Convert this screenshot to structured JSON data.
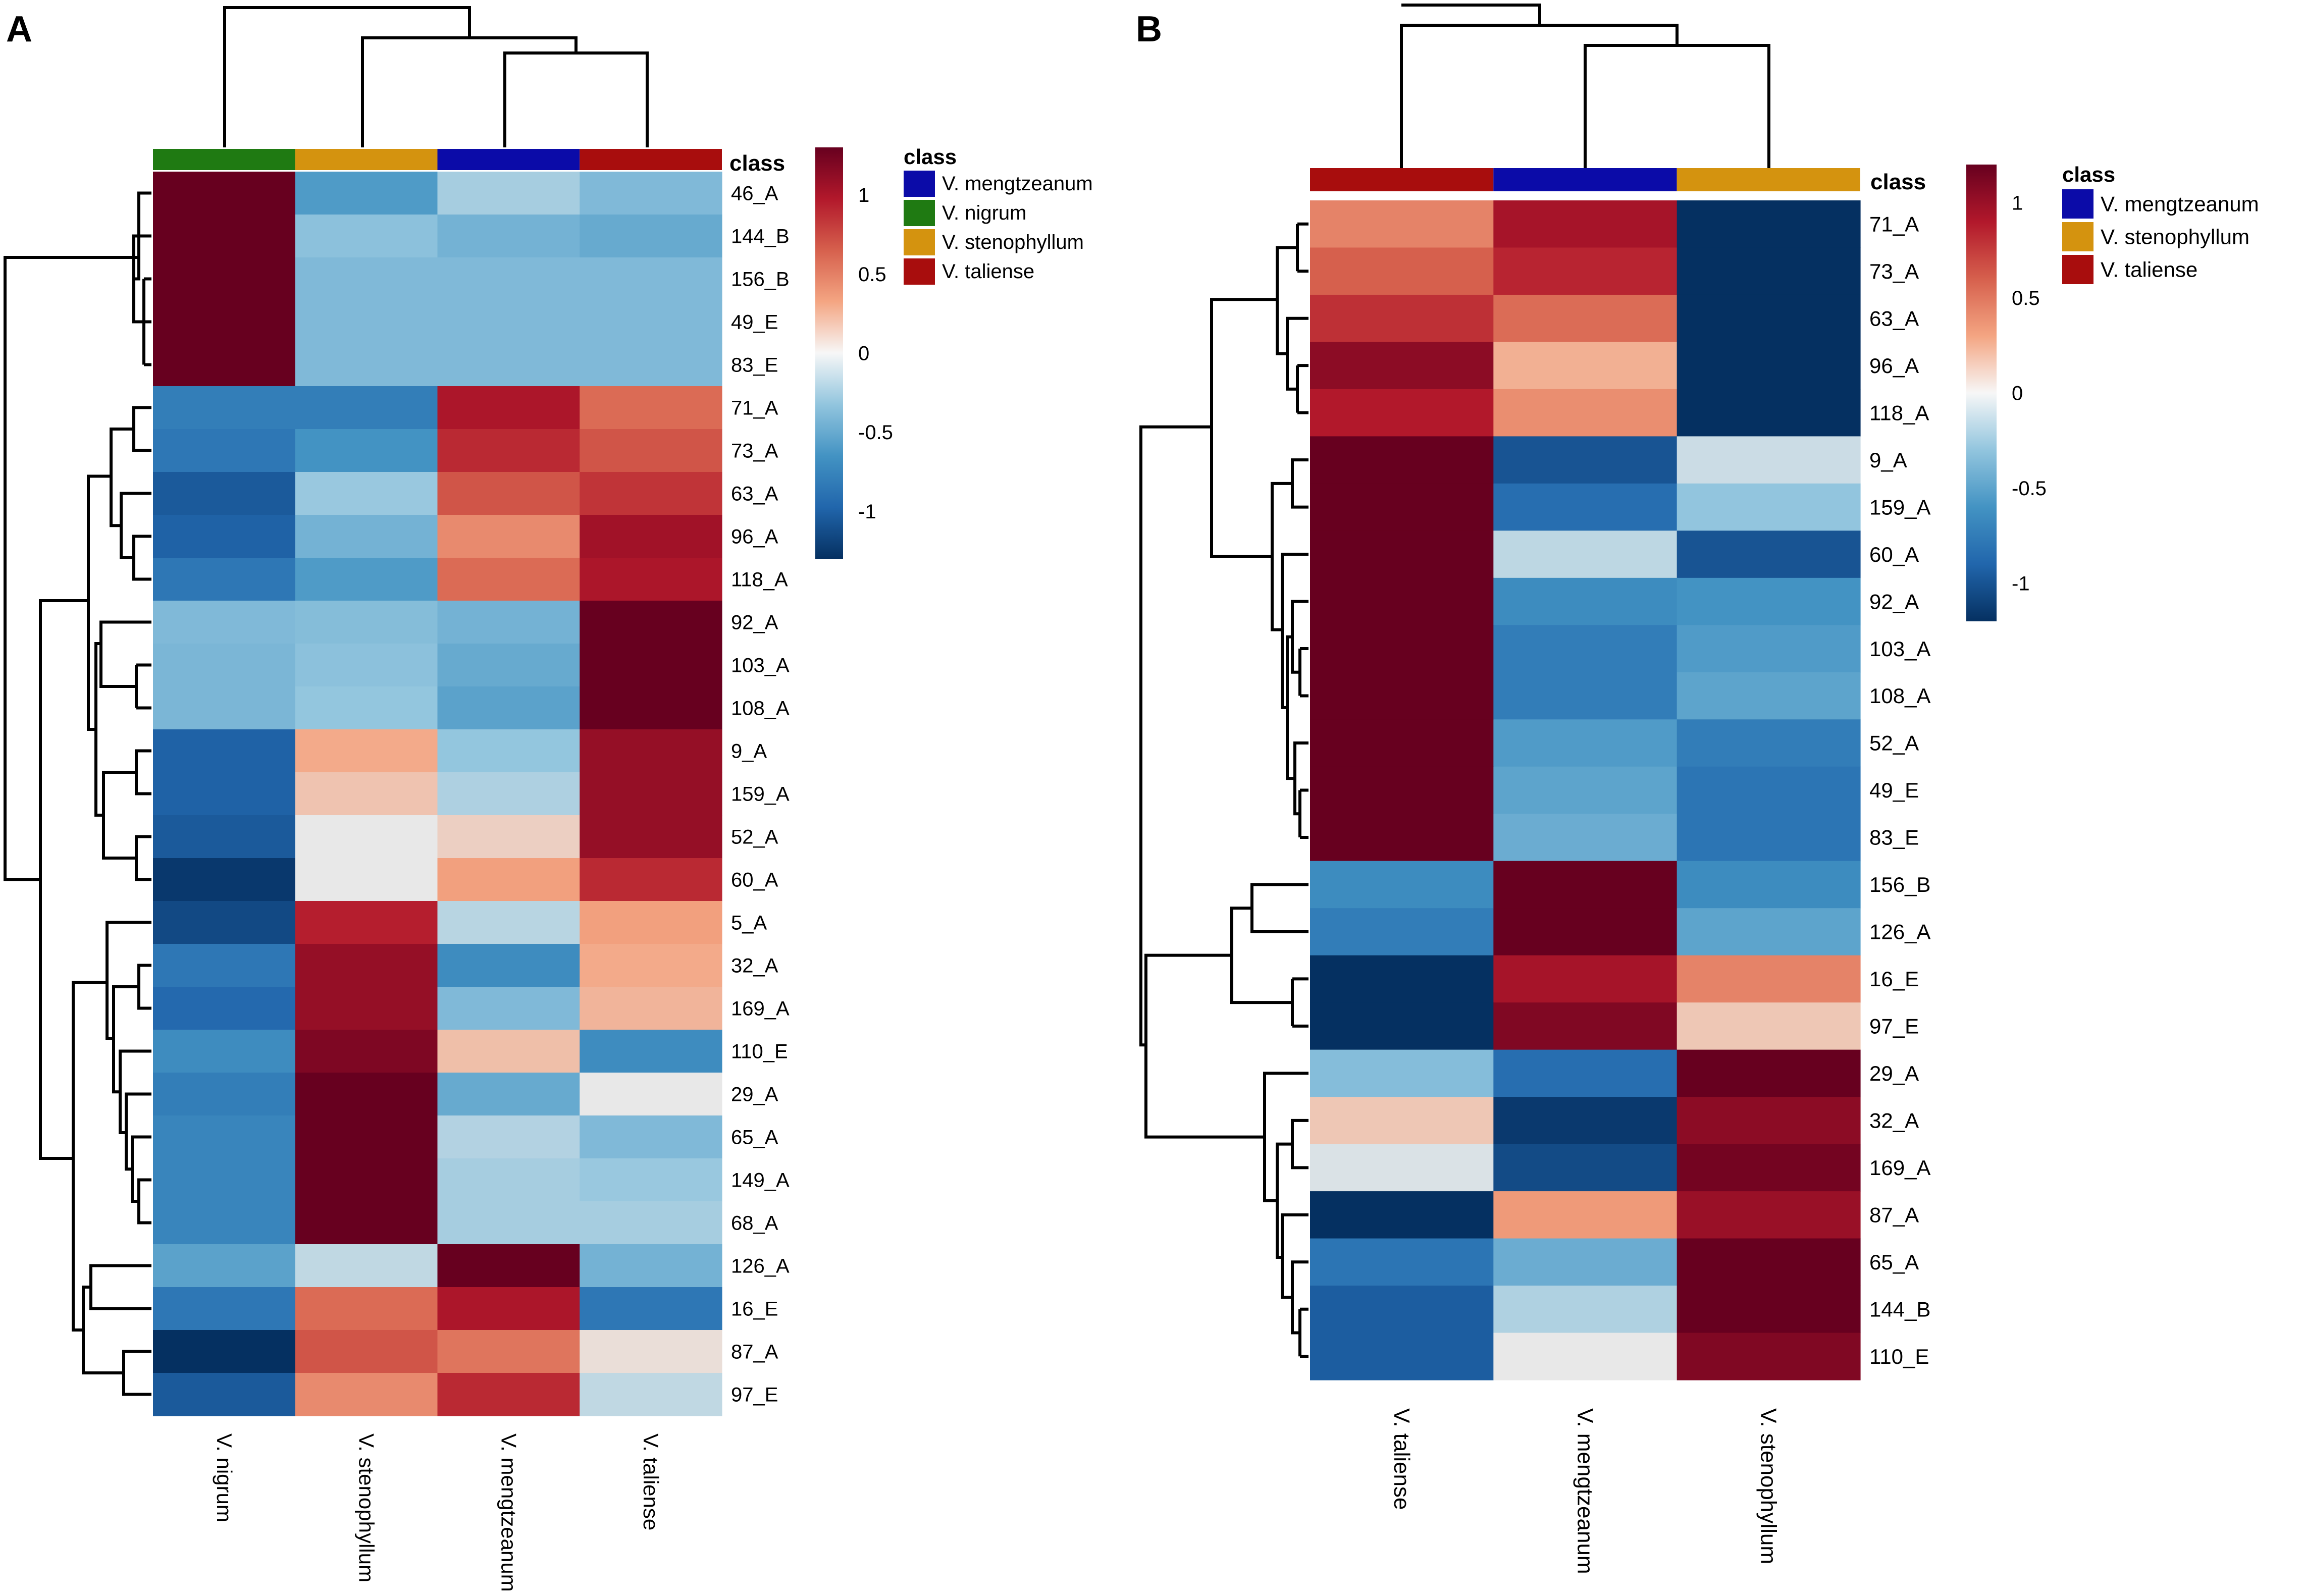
{
  "chart_data": [
    {
      "type": "heatmap",
      "panel_label": "A",
      "legend_title": "class",
      "class_bar_label": "class",
      "columns": [
        "V. nigrum",
        "V. stenophyllum",
        "V. mengtzeanum",
        "V. taliense"
      ],
      "column_class_colors": [
        "#1f7a12",
        "#d4930f",
        "#0b0ba8",
        "#a80d0d"
      ],
      "rows": [
        "46_A",
        "144_B",
        "156_B",
        "49_E",
        "83_E",
        "71_A",
        "73_A",
        "63_A",
        "96_A",
        "118_A",
        "92_A",
        "103_A",
        "108_A",
        "9_A",
        "159_A",
        "52_A",
        "60_A",
        "5_A",
        "32_A",
        "169_A",
        "110_E",
        "29_A",
        "65_A",
        "149_A",
        "68_A",
        "126_A",
        "16_E",
        "87_A",
        "97_E"
      ],
      "values": [
        [
          1.5,
          -0.6,
          -0.25,
          -0.4
        ],
        [
          1.5,
          -0.35,
          -0.45,
          -0.5
        ],
        [
          1.5,
          -0.4,
          -0.4,
          -0.4
        ],
        [
          1.5,
          -0.4,
          -0.4,
          -0.4
        ],
        [
          1.5,
          -0.4,
          -0.4,
          -0.4
        ],
        [
          -0.8,
          -0.8,
          1.0,
          0.6
        ],
        [
          -0.85,
          -0.65,
          0.9,
          0.7
        ],
        [
          -1.05,
          -0.3,
          0.7,
          0.85
        ],
        [
          -1.0,
          -0.45,
          0.45,
          1.05
        ],
        [
          -0.85,
          -0.6,
          0.6,
          1.0
        ],
        [
          -0.4,
          -0.38,
          -0.45,
          1.5
        ],
        [
          -0.42,
          -0.35,
          -0.5,
          1.5
        ],
        [
          -0.42,
          -0.32,
          -0.55,
          1.5
        ],
        [
          -1.0,
          0.3,
          -0.32,
          1.1
        ],
        [
          -1.0,
          0.18,
          -0.22,
          1.1
        ],
        [
          -1.05,
          0.0,
          0.12,
          1.1
        ],
        [
          -1.25,
          0.0,
          0.35,
          0.9
        ],
        [
          -1.15,
          0.95,
          -0.18,
          0.35
        ],
        [
          -0.85,
          1.1,
          -0.7,
          0.3
        ],
        [
          -0.95,
          1.1,
          -0.4,
          0.25
        ],
        [
          -0.7,
          1.2,
          0.2,
          -0.7
        ],
        [
          -0.8,
          1.45,
          -0.5,
          0.0
        ],
        [
          -0.75,
          1.5,
          -0.2,
          -0.4
        ],
        [
          -0.75,
          1.5,
          -0.25,
          -0.3
        ],
        [
          -0.75,
          1.5,
          -0.25,
          -0.25
        ],
        [
          -0.55,
          -0.15,
          1.5,
          -0.45
        ],
        [
          -0.85,
          0.6,
          1.0,
          -0.85
        ],
        [
          -1.35,
          0.7,
          0.55,
          0.05
        ],
        [
          -1.05,
          0.45,
          0.9,
          -0.15
        ]
      ],
      "color_scale": {
        "ticks": [
          "1",
          "0.5",
          "0",
          "-0.5",
          "-1"
        ],
        "range": [
          -1.3,
          1.3
        ]
      },
      "legend": [
        {
          "label": "V. mengtzeanum",
          "color": "#0b0ba8"
        },
        {
          "label": "V. nigrum",
          "color": "#1f7a12"
        },
        {
          "label": "V. stenophyllum",
          "color": "#d4930f"
        },
        {
          "label": "V. taliense",
          "color": "#a80d0d"
        }
      ]
    },
    {
      "type": "heatmap",
      "panel_label": "B",
      "legend_title": "class",
      "class_bar_label": "class",
      "columns": [
        "V. taliense",
        "V. mengtzeanum",
        "V. stenophyllum"
      ],
      "column_class_colors": [
        "#a80d0d",
        "#0b0ba8",
        "#d4930f"
      ],
      "rows": [
        "71_A",
        "73_A",
        "63_A",
        "96_A",
        "118_A",
        "9_A",
        "159_A",
        "60_A",
        "92_A",
        "103_A",
        "108_A",
        "52_A",
        "49_E",
        "83_E",
        "156_B",
        "126_A",
        "16_E",
        "97_E",
        "29_A",
        "32_A",
        "169_A",
        "87_A",
        "65_A",
        "144_B",
        "110_E"
      ],
      "values": [
        [
          0.45,
          0.95,
          -1.3
        ],
        [
          0.6,
          0.85,
          -1.3
        ],
        [
          0.8,
          0.55,
          -1.3
        ],
        [
          1.05,
          0.25,
          -1.2
        ],
        [
          0.9,
          0.4,
          -1.25
        ],
        [
          1.25,
          -1.0,
          -0.1
        ],
        [
          1.25,
          -0.85,
          -0.3
        ],
        [
          1.2,
          -0.15,
          -1.0
        ],
        [
          1.35,
          -0.65,
          -0.6
        ],
        [
          1.35,
          -0.75,
          -0.55
        ],
        [
          1.35,
          -0.75,
          -0.5
        ],
        [
          1.35,
          -0.55,
          -0.75
        ],
        [
          1.35,
          -0.5,
          -0.8
        ],
        [
          1.35,
          -0.45,
          -0.8
        ],
        [
          -0.65,
          1.35,
          -0.65
        ],
        [
          -0.75,
          1.35,
          -0.5
        ],
        [
          -1.3,
          0.95,
          0.45
        ],
        [
          -1.2,
          1.1,
          0.15
        ],
        [
          -0.35,
          -0.85,
          1.35
        ],
        [
          0.15,
          -1.15,
          1.05
        ],
        [
          -0.05,
          -1.05,
          1.15
        ],
        [
          -1.25,
          0.35,
          1.0
        ],
        [
          -0.8,
          -0.45,
          1.35
        ],
        [
          -0.95,
          -0.2,
          1.2
        ],
        [
          -0.95,
          0.0,
          1.1
        ]
      ],
      "color_scale": {
        "ticks": [
          "1",
          "0.5",
          "0",
          "-0.5",
          "-1"
        ],
        "range": [
          -1.2,
          1.2
        ]
      },
      "legend": [
        {
          "label": "V. mengtzeanum",
          "color": "#0b0ba8"
        },
        {
          "label": "V. stenophyllum",
          "color": "#d4930f"
        },
        {
          "label": "V. taliense",
          "color": "#a80d0d"
        }
      ]
    }
  ]
}
